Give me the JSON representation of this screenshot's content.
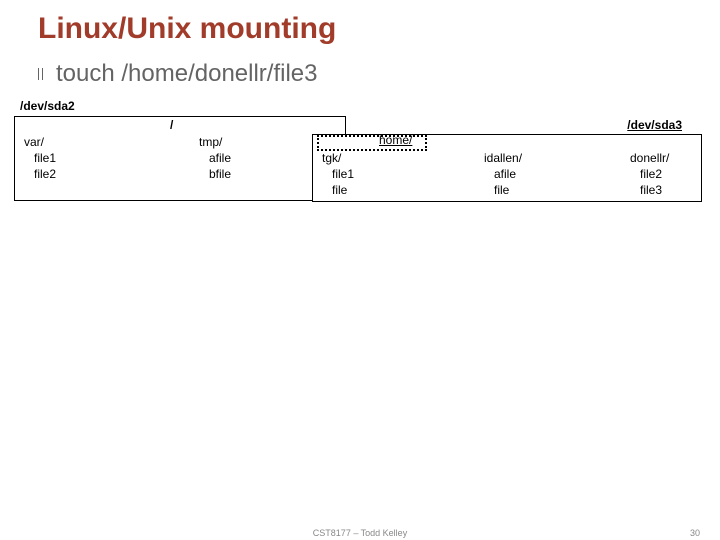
{
  "title": "Linux/Unix mounting",
  "command": "touch /home/donellr/file3",
  "device1": {
    "label": "/dev/sda2"
  },
  "device2": {
    "label": "/dev/sda3"
  },
  "root": "/",
  "var": {
    "dir": "var/",
    "f1": "file1",
    "f2": "file2"
  },
  "tmp": {
    "dir": "tmp/",
    "f1": "afile",
    "f2": "bfile"
  },
  "home": {
    "label": "home/"
  },
  "tgk": {
    "dir": "tgk/",
    "f1": "file1",
    "f2": "file"
  },
  "idallen": {
    "dir": "idallen/",
    "f1": "afile",
    "f2": "file"
  },
  "donellr": {
    "dir": "donellr/",
    "f1": "file2",
    "f2": "file3"
  },
  "footer": {
    "center": "CST8177 – Todd Kelley",
    "page": "30"
  },
  "colors": {
    "title": "#a13b2a",
    "subtext": "#646464",
    "body": "#000000",
    "footer": "#888888",
    "background": "#ffffff"
  }
}
